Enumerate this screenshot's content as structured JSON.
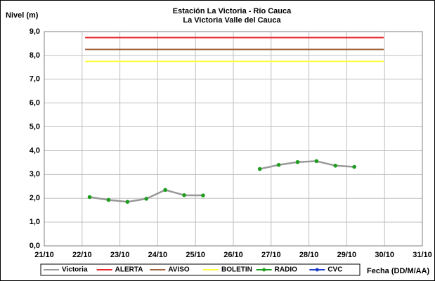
{
  "chart_data": {
    "type": "line",
    "title": "Estación La Victoria - Río Cauca",
    "subtitle": "La Victoria Valle del Cauca",
    "ylabel": "Nivel (m)",
    "xlabel": "Fecha (DD/M/AA)",
    "xlim": [
      21,
      31
    ],
    "xticks": [
      {
        "value": 21,
        "label": "21/10"
      },
      {
        "value": 22,
        "label": "22/10"
      },
      {
        "value": 23,
        "label": "23/10"
      },
      {
        "value": 24,
        "label": "24/10"
      },
      {
        "value": 25,
        "label": "25/10"
      },
      {
        "value": 26,
        "label": "26/10"
      },
      {
        "value": 27,
        "label": "27/10"
      },
      {
        "value": 28,
        "label": "28/10"
      },
      {
        "value": 29,
        "label": "29/10"
      },
      {
        "value": 30,
        "label": "30/10"
      },
      {
        "value": 31,
        "label": "31/10"
      }
    ],
    "ylim": [
      0,
      9
    ],
    "yticks": [
      {
        "value": 0,
        "label": "0,0"
      },
      {
        "value": 1,
        "label": "1,0"
      },
      {
        "value": 2,
        "label": "2,0"
      },
      {
        "value": 3,
        "label": "3,0"
      },
      {
        "value": 4,
        "label": "4,0"
      },
      {
        "value": 5,
        "label": "5,0"
      },
      {
        "value": 6,
        "label": "6,0"
      },
      {
        "value": 7,
        "label": "7,0"
      },
      {
        "value": 8,
        "label": "8,0"
      },
      {
        "value": 9,
        "label": "9,0"
      }
    ],
    "grid": true,
    "legend": "bottom",
    "series": [
      {
        "name": "Victoria",
        "color": "#999999",
        "marker": false,
        "x": [
          22.2,
          22.7,
          23.2,
          23.7,
          24.2,
          24.7,
          25.2,
          26,
          26.7,
          27.2,
          27.7,
          28.2,
          28.7,
          29.2
        ],
        "values": [
          2.05,
          1.93,
          1.85,
          1.98,
          2.35,
          2.13,
          2.12,
          null,
          3.23,
          3.4,
          3.52,
          3.56,
          3.37,
          3.32
        ]
      },
      {
        "name": "ALERTA",
        "color": "#e8262b",
        "marker": false,
        "x": [
          22.08,
          29.98
        ],
        "values": [
          8.75,
          8.75
        ]
      },
      {
        "name": "AVISO",
        "color": "#a0643c",
        "marker": false,
        "x": [
          22.08,
          29.98
        ],
        "values": [
          8.25,
          8.25
        ]
      },
      {
        "name": "BOLETIN",
        "color": "#ffff40",
        "marker": false,
        "x": [
          22.08,
          29.98
        ],
        "values": [
          7.75,
          7.75
        ]
      },
      {
        "name": "RADIO",
        "color": "#1e9e1e",
        "marker": true,
        "line": false,
        "x": [
          22.2,
          22.7,
          23.2,
          23.7,
          24.2,
          24.7,
          25.2,
          26,
          26.7,
          27.2,
          27.7,
          28.2,
          28.7,
          29.2
        ],
        "values": [
          2.05,
          1.93,
          1.85,
          1.98,
          2.35,
          2.13,
          2.12,
          null,
          3.23,
          3.4,
          3.52,
          3.56,
          3.37,
          3.32
        ]
      },
      {
        "name": "CVC",
        "color": "#1e3cc8",
        "marker": true,
        "line": false,
        "x": [],
        "values": []
      }
    ]
  }
}
